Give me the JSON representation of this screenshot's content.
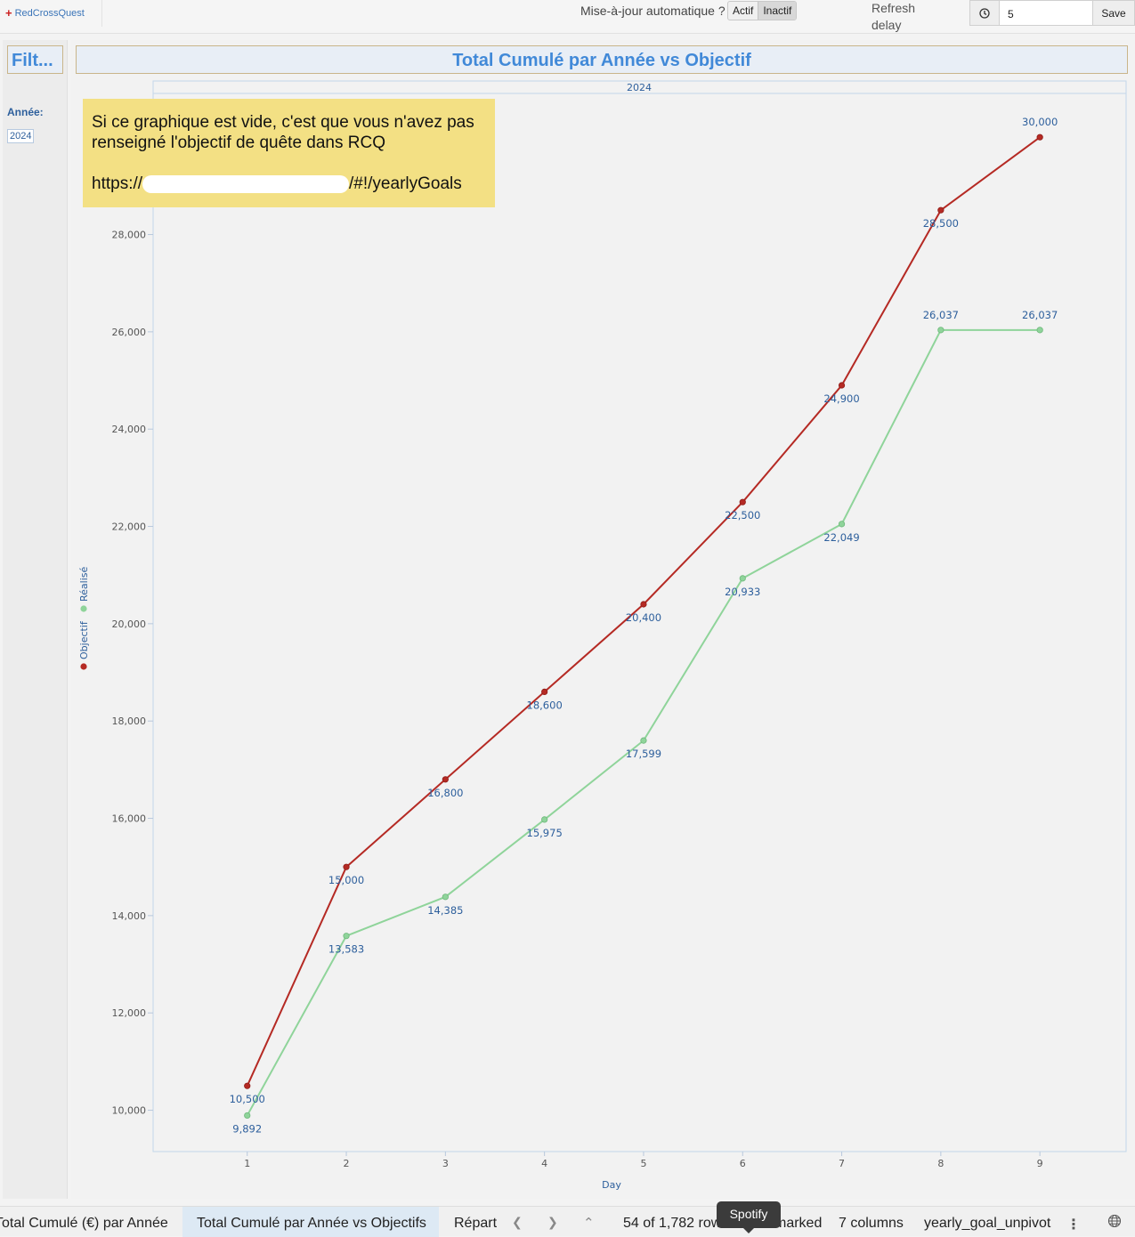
{
  "header": {
    "logo_text": "RedCrossQuest",
    "auto_update_label": "Mise-à-jour automatique ?",
    "toggle_active": "Actif",
    "toggle_inactive": "Inactif",
    "refresh_label_line1": "Refresh",
    "refresh_label_line2": "delay",
    "refresh_value": "5",
    "save_label": "Save"
  },
  "filters": {
    "title": "Filt...",
    "year_label": "Année:",
    "year_value": "2024"
  },
  "viz": {
    "title": "Total Cumulé par Année vs Objectif",
    "note_line1": "Si ce graphique est vide, c'est que vous n'avez pas renseigné l'objectif de quête dans RCQ",
    "note_url_start": "https://",
    "note_url_end": "/#!/yearlyGoals"
  },
  "chart_data": {
    "type": "line",
    "panel_label": "2024",
    "xlabel": "Day",
    "ylabel": "",
    "x": [
      1,
      2,
      3,
      4,
      5,
      6,
      7,
      8,
      9
    ],
    "xlim": [
      0.05,
      9.87
    ],
    "ylim": [
      9150,
      30900
    ],
    "yticks": [
      10000,
      12000,
      14000,
      16000,
      18000,
      20000,
      22000,
      24000,
      26000,
      28000
    ],
    "legend_position": "left-vertical",
    "grid": false,
    "series": [
      {
        "name": "Objectif",
        "color": "#b52a24",
        "values": [
          10500,
          15000,
          16800,
          18600,
          20400,
          22500,
          24900,
          28500,
          30000
        ],
        "labels": [
          "10,500",
          "15,000",
          "16,800",
          "18,600",
          "20,400",
          "22,500",
          "24,900",
          "28,500",
          "30,000"
        ]
      },
      {
        "name": "Réalisé",
        "color": "#8fd49a",
        "values": [
          9892,
          13583,
          14385,
          15975,
          17599,
          20933,
          22049,
          26037,
          26037
        ],
        "labels": [
          "9,892",
          "13,583",
          "14,385",
          "15,975",
          "17,599",
          "20,933",
          "22,049",
          "26,037",
          "26,037"
        ]
      }
    ]
  },
  "tabs": {
    "tab1": "Total Cumulé (€) par Année",
    "tab2": "Total Cumulé par Année vs Objectifs",
    "tab3": "Répart",
    "rows_status": "54 of 1,782 rows",
    "marked_status": "marked",
    "columns_status": "7 columns",
    "table_name": "yearly_goal_unpivot",
    "tooltip": "Spotify"
  },
  "icons": {
    "clock": "clock-icon",
    "prev": "chevron-left-icon",
    "next": "chevron-right-icon",
    "collapse": "double-chevron-up-icon",
    "more": "more-vertical-icon",
    "globe": "globe-icon",
    "logo": "red-cross-icon"
  }
}
